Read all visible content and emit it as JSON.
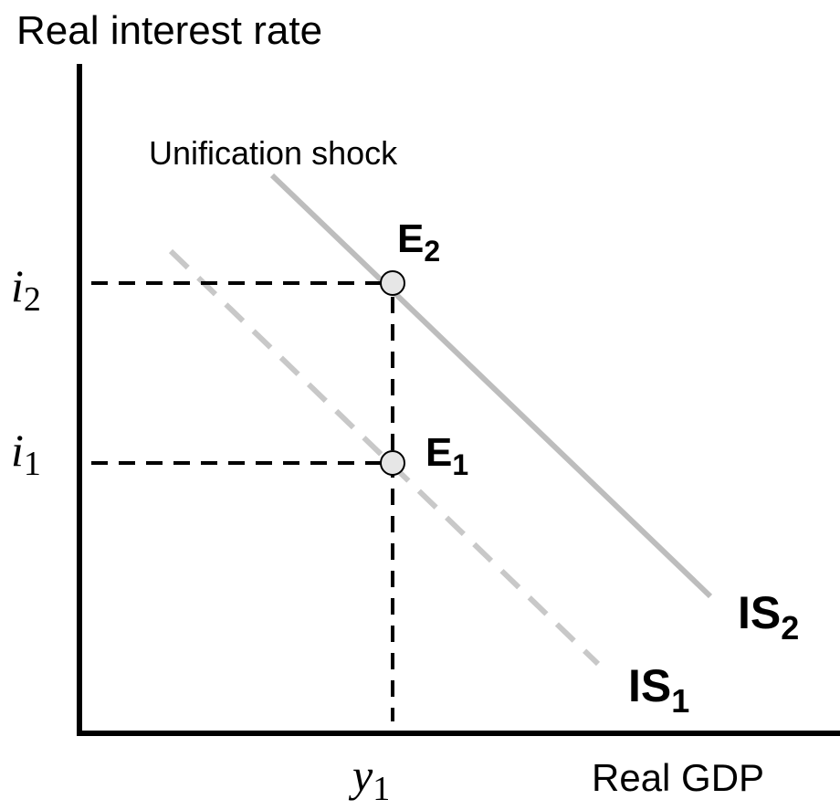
{
  "axes": {
    "y_label": "Real interest rate",
    "x_label": "Real GDP"
  },
  "annotation": "Unification shock",
  "points": [
    {
      "label": "E",
      "subscript": "2"
    },
    {
      "label": "E",
      "subscript": "1"
    }
  ],
  "curves": [
    {
      "label": "IS",
      "subscript": "2"
    },
    {
      "label": "IS",
      "subscript": "1"
    }
  ],
  "ticks": {
    "y": [
      {
        "label": "i",
        "subscript": "2"
      },
      {
        "label": "i",
        "subscript": "1"
      }
    ],
    "x": [
      {
        "label": "y",
        "subscript": "1"
      }
    ]
  }
}
